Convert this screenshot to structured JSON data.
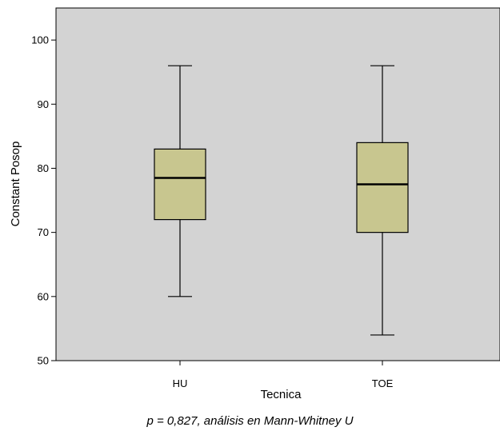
{
  "chart_data": {
    "type": "box",
    "xlabel": "Tecnica",
    "ylabel": "Constant Posop",
    "ylim": [
      50,
      105
    ],
    "yticks": [
      50,
      60,
      70,
      80,
      90,
      100
    ],
    "grid": false,
    "colors": {
      "plot_background": "#d3d3d3",
      "box_fill": "#c8c68f",
      "line": "#000000"
    },
    "boxes": [
      {
        "category": "HU",
        "whisker_low": 60,
        "q1": 72,
        "median": 78.5,
        "q3": 83,
        "whisker_high": 96
      },
      {
        "category": "TOE",
        "whisker_low": 54,
        "q1": 70,
        "median": 77.5,
        "q3": 84,
        "whisker_high": 96
      }
    ]
  },
  "caption": "p = 0,827, análisis en Mann-Whitney U"
}
